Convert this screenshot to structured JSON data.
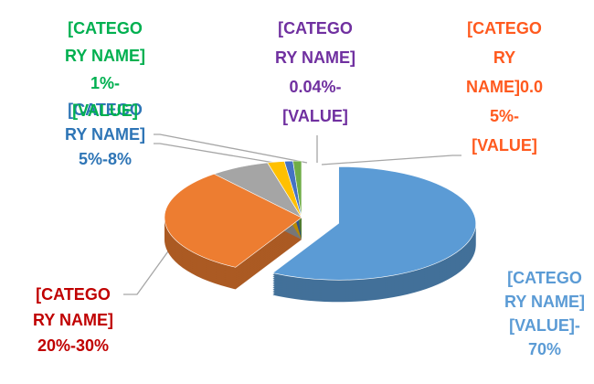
{
  "chart_data": {
    "type": "pie",
    "labels": [
      [
        "[CATEGO",
        "RY NAME]",
        "[VALUE]-",
        "70%"
      ],
      [
        "[CATEGO",
        "RY NAME]",
        "20%-30%"
      ],
      [
        "[CATEGO",
        "RY NAME]",
        "5%-8%"
      ],
      [
        "[CATEGO",
        "RY NAME]",
        "1%-",
        "[VALUE]"
      ],
      [
        "[CATEGO",
        "RY NAME]",
        "0.04%-",
        "[VALUE]"
      ],
      [
        "[CATEGO",
        "RY",
        "NAME]0.0",
        "5%-",
        "[VALUE]"
      ]
    ],
    "label_colors": [
      "#5b9bd5",
      "#c00000",
      "#2e75b6",
      "#00b050",
      "#7030a0",
      "#ff5a1f"
    ],
    "values": [
      58,
      31,
      7,
      2,
      1,
      1
    ],
    "colors": [
      "#5b9bd5",
      "#ed7d31",
      "#a5a5a5",
      "#ffc000",
      "#4472c4",
      "#70ad47"
    ]
  }
}
